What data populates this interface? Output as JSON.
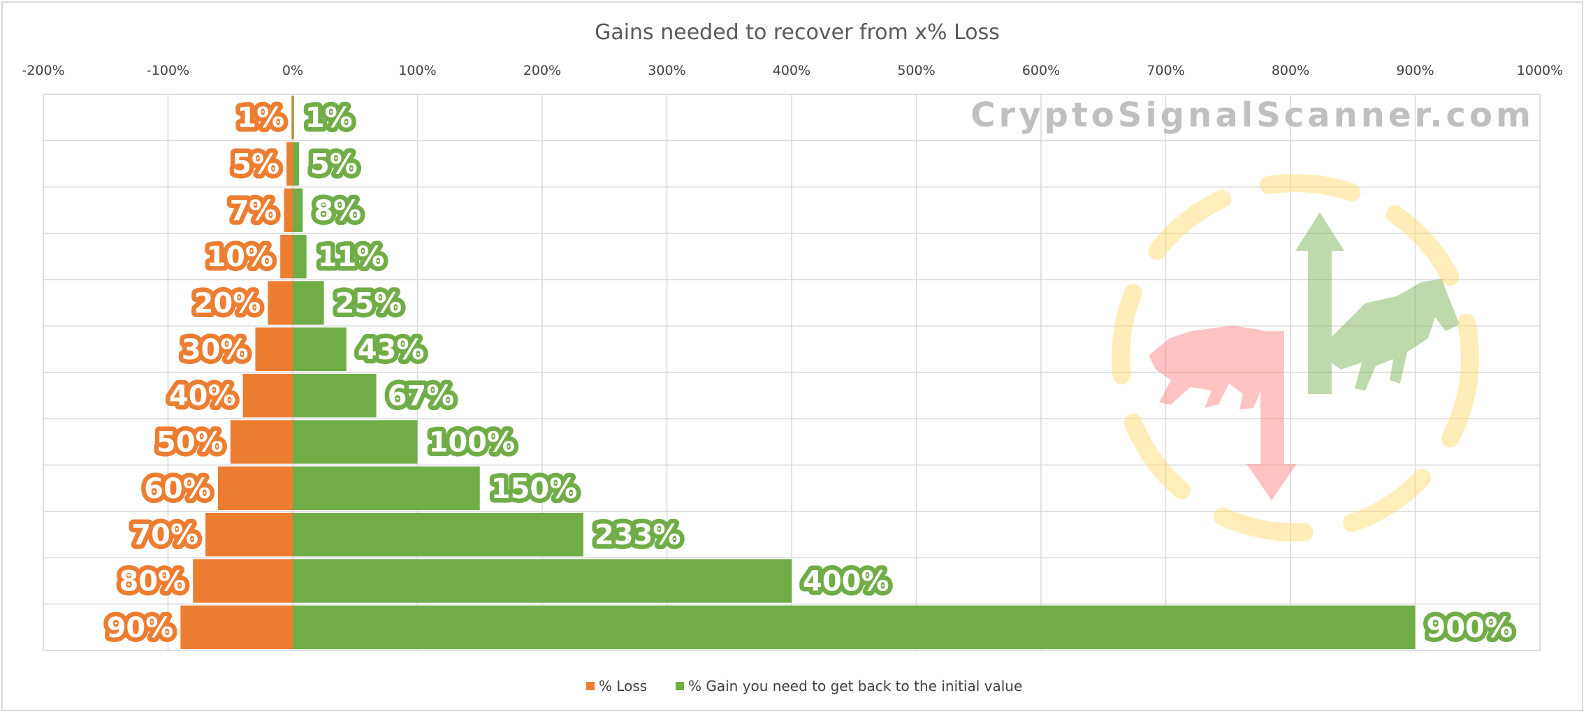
{
  "chart_data": {
    "type": "bar",
    "orientation": "horizontal",
    "stacked": true,
    "title": "Gains needed to recover from x% Loss",
    "xlim": [
      -200,
      1000
    ],
    "x_ticks": [
      "-200%",
      "-100%",
      "0%",
      "100%",
      "200%",
      "300%",
      "400%",
      "500%",
      "600%",
      "700%",
      "800%",
      "900%",
      "1000%"
    ],
    "x_tick_values": [
      -200,
      -100,
      0,
      100,
      200,
      300,
      400,
      500,
      600,
      700,
      800,
      900,
      1000
    ],
    "grid": true,
    "legend_position": "bottom",
    "categories": [
      "1%",
      "5%",
      "7%",
      "10%",
      "20%",
      "30%",
      "40%",
      "50%",
      "60%",
      "70%",
      "80%",
      "90%"
    ],
    "series": [
      {
        "name": "% Loss",
        "color": "#ed7d31",
        "values": [
          -1,
          -5,
          -7,
          -10,
          -20,
          -30,
          -40,
          -50,
          -60,
          -70,
          -80,
          -90
        ],
        "labels": [
          "1%",
          "5%",
          "7%",
          "10%",
          "20%",
          "30%",
          "40%",
          "50%",
          "60%",
          "70%",
          "80%",
          "90%"
        ]
      },
      {
        "name": "% Gain you need to get back to the initial value",
        "color": "#70ad47",
        "values": [
          1,
          5,
          8,
          11,
          25,
          43,
          67,
          100,
          150,
          233,
          400,
          900
        ],
        "labels": [
          "1%",
          "5%",
          "8%",
          "11%",
          "25%",
          "43%",
          "67%",
          "100%",
          "150%",
          "233%",
          "400%",
          "900%"
        ]
      }
    ]
  },
  "watermark": {
    "text": "CryptoSignalScanner.com",
    "logo": "bull-bear-arrows-logo"
  }
}
